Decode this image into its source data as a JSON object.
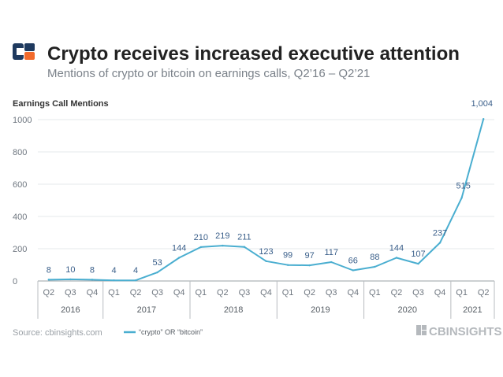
{
  "header": {
    "title": "Crypto receives increased executive attention",
    "subtitle": "Mentions of crypto or bitcoin on earnings calls, Q2’16 – Q2’21"
  },
  "footer": {
    "source": "Source: cbinsights.com",
    "brand": "CBINSIGHTS"
  },
  "colors": {
    "line": "#4aaed0",
    "data_label": "#3a5f8a",
    "logo_navy": "#1f3a5f",
    "logo_orange": "#f26a2c"
  },
  "chart_data": {
    "type": "line",
    "ylabel": "Earnings Call Mentions",
    "ylim": [
      0,
      1000
    ],
    "yticks": [
      "0",
      "200",
      "400",
      "600",
      "800",
      "1000"
    ],
    "categories": [
      "Q2",
      "Q3",
      "Q4",
      "Q1",
      "Q2",
      "Q3",
      "Q4",
      "Q1",
      "Q2",
      "Q3",
      "Q4",
      "Q1",
      "Q2",
      "Q3",
      "Q4",
      "Q1",
      "Q2",
      "Q3",
      "Q4",
      "Q1",
      "Q2"
    ],
    "years": [
      {
        "label": "2016",
        "count": 3
      },
      {
        "label": "2017",
        "count": 4
      },
      {
        "label": "2018",
        "count": 4
      },
      {
        "label": "2019",
        "count": 4
      },
      {
        "label": "2020",
        "count": 4
      },
      {
        "label": "2021",
        "count": 2
      }
    ],
    "series": [
      {
        "name": "“crypto” OR “bitcoin”",
        "values": [
          8,
          10,
          8,
          4,
          4,
          53,
          144,
          210,
          219,
          211,
          123,
          99,
          97,
          117,
          66,
          88,
          144,
          107,
          237,
          515,
          1004
        ],
        "labels": [
          "8",
          "10",
          "8",
          "4",
          "4",
          "53",
          "144",
          "210",
          "219",
          "211",
          "123",
          "99",
          "97",
          "117",
          "66",
          "88",
          "144",
          "107",
          "237",
          "515",
          "1,004"
        ]
      }
    ],
    "legend_position": "bottom"
  }
}
